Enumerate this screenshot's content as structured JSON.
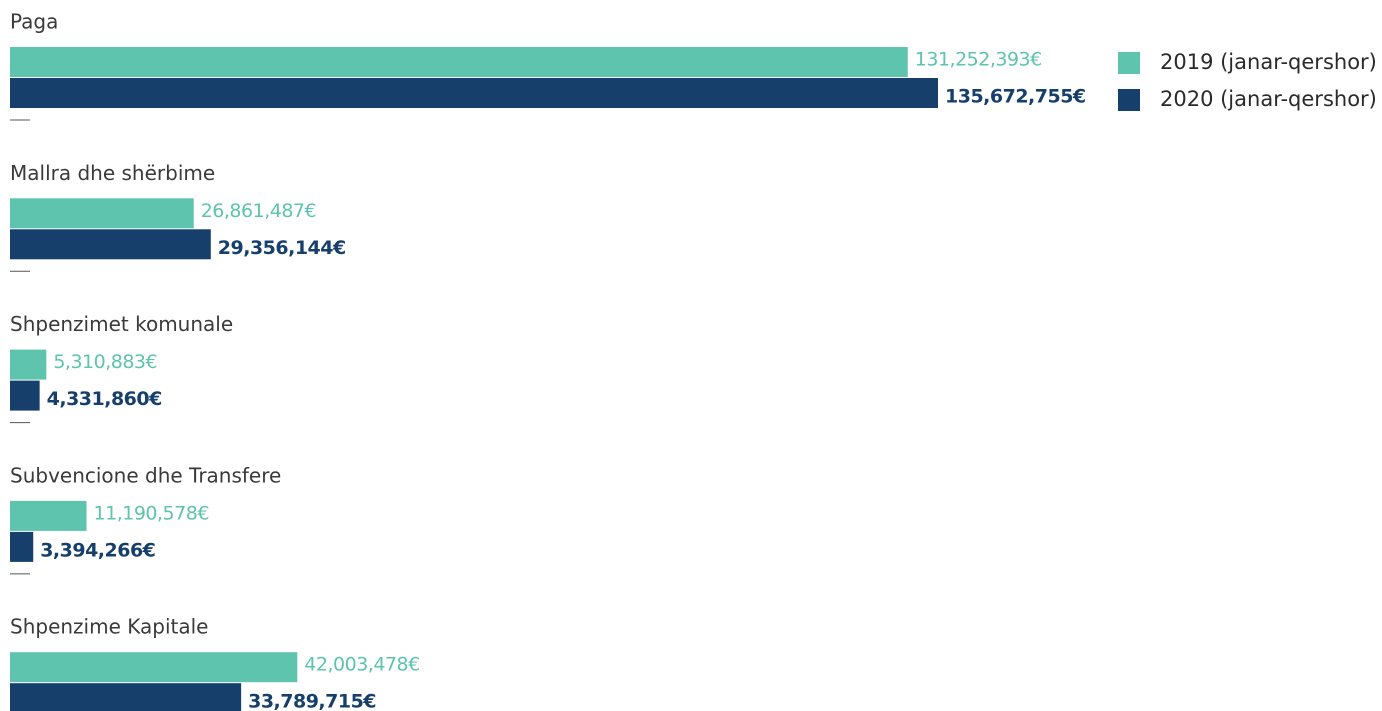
{
  "chart_data": {
    "type": "hbar",
    "categories": [
      "Paga",
      "Mallra dhe shërbime",
      "Shpenzimet komunale",
      "Subvencione dhe Transfere",
      "Shpenzime Kapitale"
    ],
    "series": [
      {
        "name": "2019 (janar-qershor)",
        "color": "#5ec4ae",
        "values": [
          131252393,
          26861487,
          5310883,
          11190578,
          42003478
        ],
        "value_labels": [
          "131,252,393€",
          "26,861,487€",
          "5,310,883€",
          "11,190,578€",
          "42,003,478€"
        ]
      },
      {
        "name": "2020 (janar-qershor)",
        "color": "#173f6c",
        "values": [
          135672755,
          29356144,
          4331860,
          3394266,
          33789715
        ],
        "value_labels": [
          "135,672,755€",
          "29,356,144€",
          "4,331,860€",
          "3,394,266€",
          "33,789,715€"
        ]
      }
    ],
    "xlim": [
      0,
      200000000
    ],
    "legend": "top-right"
  }
}
